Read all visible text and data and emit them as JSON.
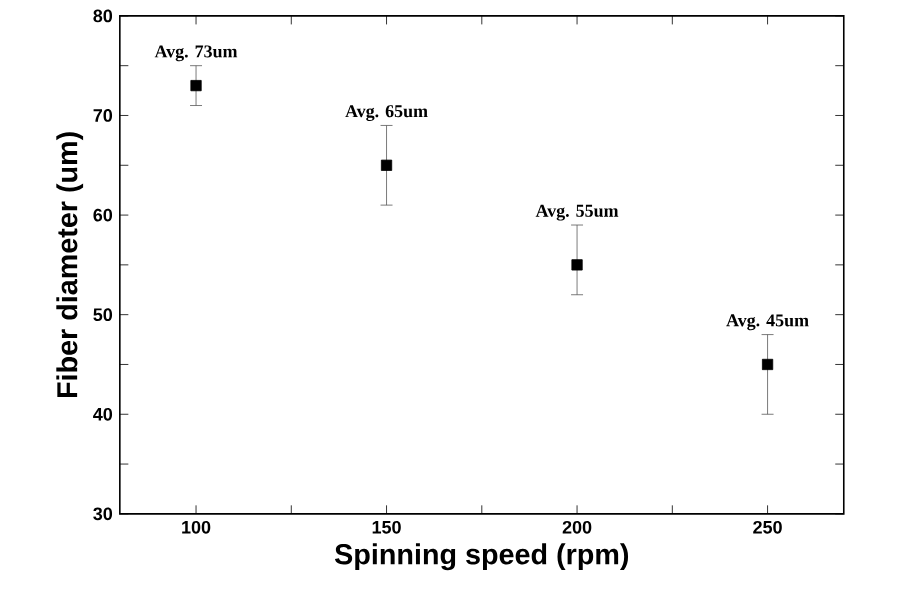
{
  "chart_data": {
    "type": "scatter",
    "xlabel": "Spinning speed (rpm)",
    "ylabel": "Fiber diameter (um)",
    "x": [
      100,
      150,
      200,
      250
    ],
    "values": [
      73,
      65,
      55,
      45
    ],
    "errors": [
      [
        71,
        75
      ],
      [
        61,
        69
      ],
      [
        52,
        59
      ],
      [
        40,
        48
      ]
    ],
    "color": "#000000",
    "marker": "square",
    "xlim": [
      80,
      270
    ],
    "ylim": [
      30,
      80
    ],
    "xticks": [
      100,
      {
        "value": 125,
        "label": null
      },
      150,
      {
        "value": 175,
        "label": null
      },
      200,
      {
        "value": 225,
        "label": null
      },
      250
    ],
    "yticks": [
      30,
      {
        "value": 35,
        "label": null
      },
      40,
      {
        "value": 45,
        "label": null
      },
      50,
      {
        "value": 55,
        "label": null
      },
      60,
      {
        "value": 65,
        "label": null
      },
      70,
      {
        "value": 75,
        "label": null
      },
      80
    ],
    "annotations": [
      {
        "text": "Avg. 73um",
        "x": 100,
        "y": 73
      },
      {
        "text": "Avg. 65um",
        "x": 150,
        "y": 65
      },
      {
        "text": "Avg. 55um",
        "x": 200,
        "y": 55
      },
      {
        "text": "Avg. 45um",
        "x": 250,
        "y": 45
      }
    ],
    "grid": false
  }
}
